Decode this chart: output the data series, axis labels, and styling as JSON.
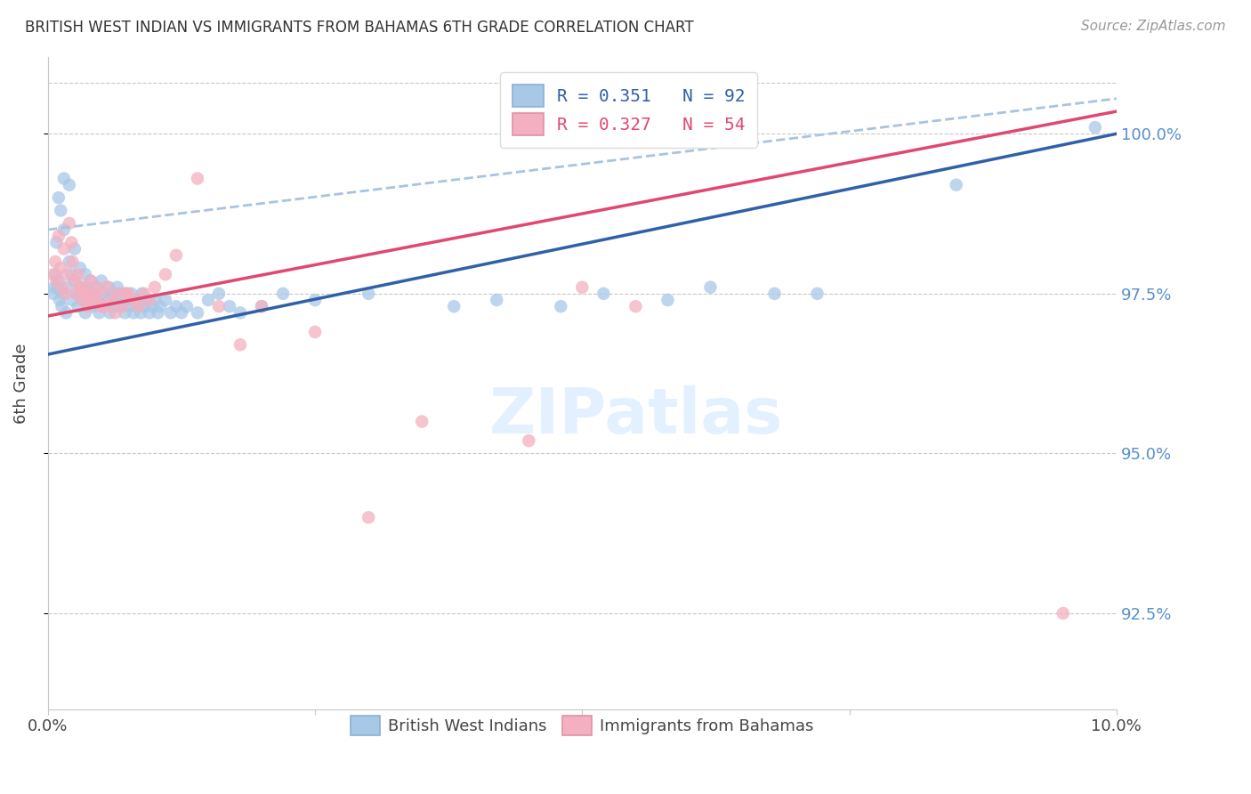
{
  "title": "BRITISH WEST INDIAN VS IMMIGRANTS FROM BAHAMAS 6TH GRADE CORRELATION CHART",
  "source": "Source: ZipAtlas.com",
  "ylabel": "6th Grade",
  "y_tick_labels": [
    "92.5%",
    "95.0%",
    "97.5%",
    "100.0%"
  ],
  "y_tick_values": [
    92.5,
    95.0,
    97.5,
    100.0
  ],
  "x_min": 0.0,
  "x_max": 10.0,
  "y_min": 91.0,
  "y_max": 101.2,
  "legend_blue_label": "British West Indians",
  "legend_pink_label": "Immigrants from Bahamas",
  "R_blue": 0.351,
  "N_blue": 92,
  "R_pink": 0.327,
  "N_pink": 54,
  "blue_color": "#a8c8e8",
  "pink_color": "#f4b0c0",
  "blue_line_color": "#3060a8",
  "pink_line_color": "#e04870",
  "dashed_line_color": "#a8c4e0",
  "background_color": "#ffffff",
  "grid_color": "#c8c8c8",
  "right_axis_color": "#5590cc",
  "blue_line_x0": 0.0,
  "blue_line_y0": 96.55,
  "blue_line_x1": 10.0,
  "blue_line_y1": 100.0,
  "pink_line_x0": 0.0,
  "pink_line_y0": 97.15,
  "pink_line_x1": 10.0,
  "pink_line_y1": 100.35,
  "dashed_line_x0": 0.0,
  "dashed_line_y0": 98.5,
  "dashed_line_x1": 10.0,
  "dashed_line_y1": 100.55,
  "blue_scatter_x": [
    0.05,
    0.07,
    0.08,
    0.09,
    0.1,
    0.1,
    0.12,
    0.13,
    0.14,
    0.15,
    0.15,
    0.17,
    0.18,
    0.2,
    0.2,
    0.22,
    0.23,
    0.25,
    0.25,
    0.27,
    0.28,
    0.3,
    0.3,
    0.32,
    0.33,
    0.35,
    0.35,
    0.37,
    0.38,
    0.4,
    0.4,
    0.42,
    0.43,
    0.45,
    0.47,
    0.48,
    0.5,
    0.52,
    0.53,
    0.55,
    0.57,
    0.58,
    0.6,
    0.62,
    0.63,
    0.65,
    0.67,
    0.68,
    0.7,
    0.72,
    0.73,
    0.75,
    0.77,
    0.78,
    0.8,
    0.82,
    0.85,
    0.87,
    0.88,
    0.9,
    0.93,
    0.95,
    0.98,
    1.0,
    1.03,
    1.05,
    1.1,
    1.15,
    1.2,
    1.25,
    1.3,
    1.4,
    1.5,
    1.6,
    1.7,
    1.8,
    2.0,
    2.2,
    2.5,
    3.0,
    3.8,
    4.2,
    4.8,
    5.2,
    5.8,
    6.2,
    6.8,
    7.2,
    8.5,
    9.8,
    0.06,
    0.11
  ],
  "blue_scatter_y": [
    97.5,
    97.8,
    98.3,
    97.6,
    97.7,
    99.0,
    98.8,
    97.3,
    97.5,
    99.3,
    98.5,
    97.2,
    97.6,
    99.2,
    98.0,
    97.8,
    97.4,
    97.7,
    98.2,
    97.5,
    97.3,
    97.9,
    97.5,
    97.6,
    97.4,
    97.8,
    97.2,
    97.6,
    97.5,
    97.4,
    97.7,
    97.3,
    97.5,
    97.6,
    97.4,
    97.2,
    97.7,
    97.5,
    97.3,
    97.4,
    97.6,
    97.2,
    97.5,
    97.3,
    97.4,
    97.6,
    97.3,
    97.5,
    97.4,
    97.2,
    97.5,
    97.4,
    97.3,
    97.5,
    97.2,
    97.4,
    97.3,
    97.2,
    97.5,
    97.3,
    97.4,
    97.2,
    97.3,
    97.4,
    97.2,
    97.3,
    97.4,
    97.2,
    97.3,
    97.2,
    97.3,
    97.2,
    97.4,
    97.5,
    97.3,
    97.2,
    97.3,
    97.5,
    97.4,
    97.5,
    97.3,
    97.4,
    97.3,
    97.5,
    97.4,
    97.6,
    97.5,
    97.5,
    99.2,
    100.1,
    97.6,
    97.4
  ],
  "pink_scatter_x": [
    0.05,
    0.07,
    0.08,
    0.1,
    0.12,
    0.13,
    0.15,
    0.17,
    0.18,
    0.2,
    0.22,
    0.23,
    0.25,
    0.27,
    0.28,
    0.3,
    0.32,
    0.33,
    0.35,
    0.37,
    0.38,
    0.4,
    0.42,
    0.45,
    0.48,
    0.5,
    0.55,
    0.6,
    0.65,
    0.7,
    0.75,
    0.8,
    0.85,
    0.9,
    0.95,
    1.0,
    1.1,
    1.2,
    1.4,
    1.6,
    1.8,
    2.0,
    2.5,
    3.0,
    3.5,
    4.5,
    5.0,
    5.5,
    6.0,
    9.5,
    0.43,
    0.53,
    0.63,
    0.73
  ],
  "pink_scatter_y": [
    97.8,
    98.0,
    97.7,
    98.4,
    97.9,
    97.6,
    98.2,
    97.5,
    97.8,
    98.6,
    98.3,
    98.0,
    97.7,
    97.5,
    97.8,
    97.6,
    97.4,
    97.6,
    97.5,
    97.3,
    97.5,
    97.7,
    97.4,
    97.6,
    97.5,
    97.3,
    97.6,
    97.4,
    97.5,
    97.3,
    97.5,
    97.4,
    97.3,
    97.5,
    97.4,
    97.6,
    97.8,
    98.1,
    99.3,
    97.3,
    96.7,
    97.3,
    96.9,
    94.0,
    95.5,
    95.2,
    97.6,
    97.3,
    100.1,
    92.5,
    97.4,
    97.3,
    97.2,
    97.5
  ]
}
